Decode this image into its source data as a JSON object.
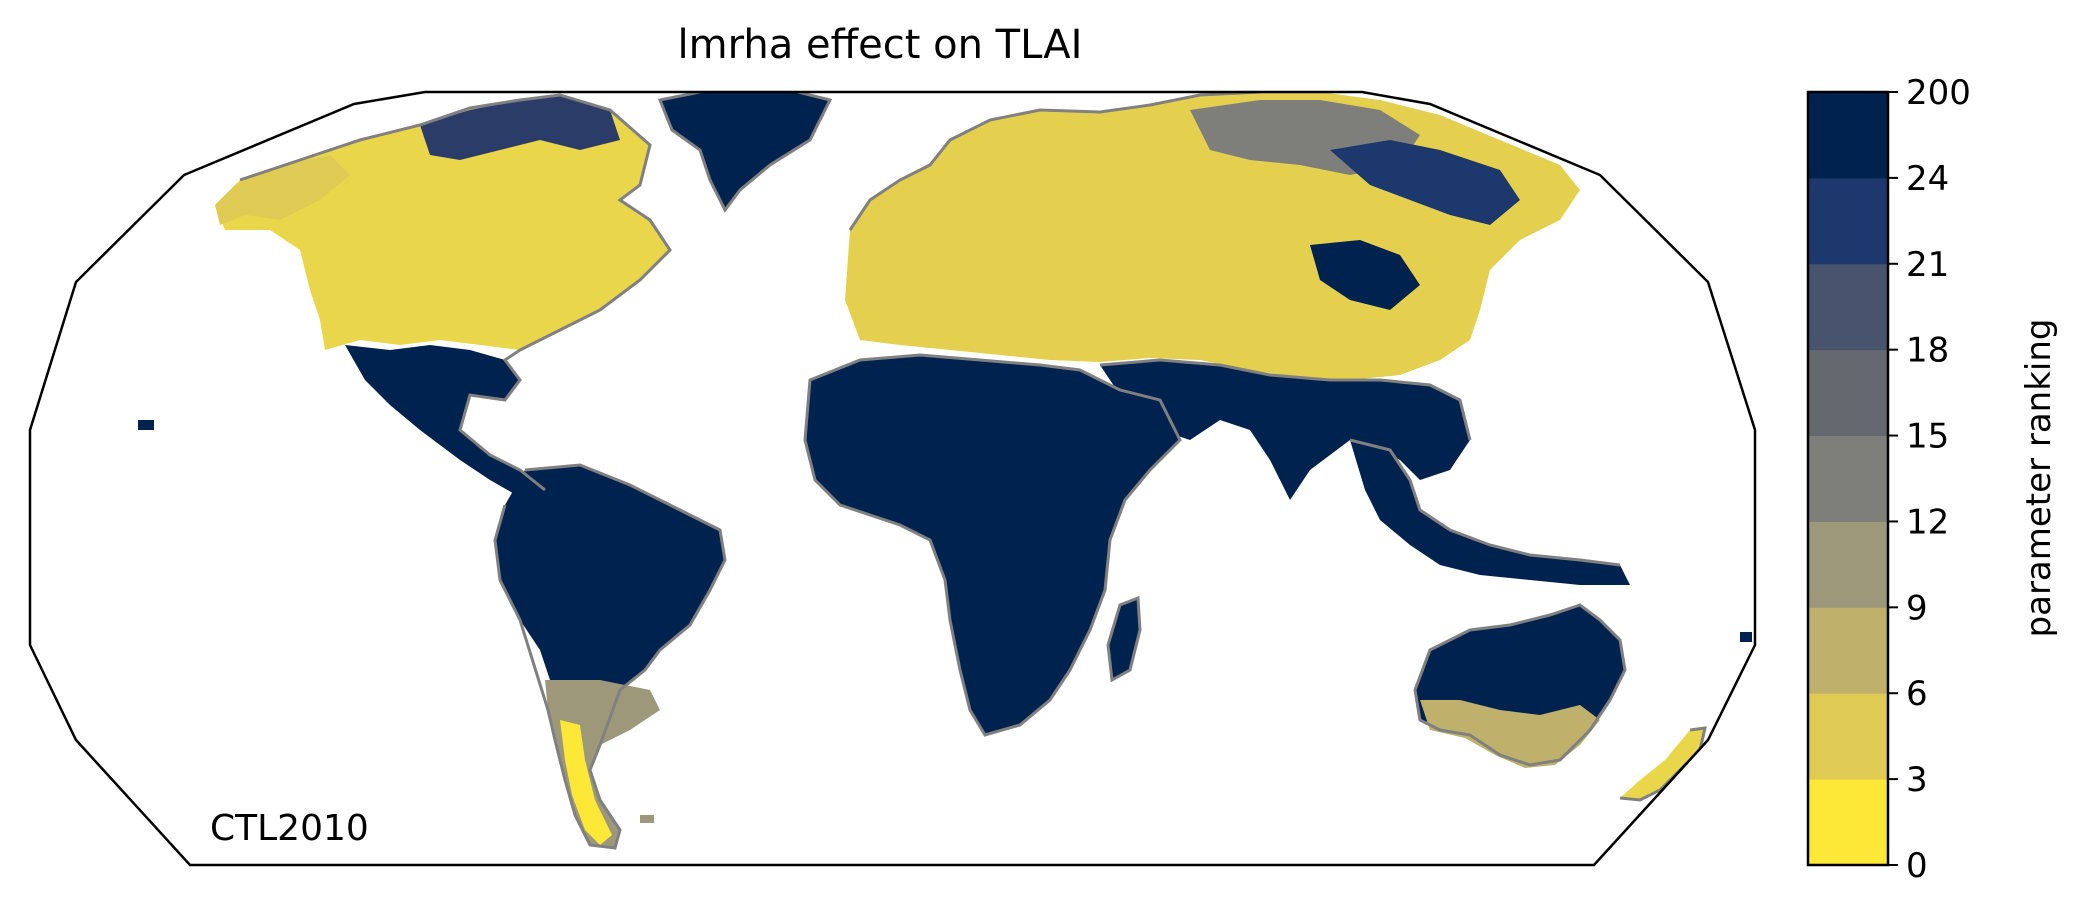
{
  "title": "lmrha effect on TLAI",
  "corner_label": "CTL2010",
  "colorbar": {
    "label": "parameter ranking",
    "ticks": [
      "0",
      "3",
      "6",
      "9",
      "12",
      "15",
      "18",
      "21",
      "24",
      "200"
    ],
    "colors": [
      "#fde737",
      "#dfcb54",
      "#bfb16b",
      "#9d987a",
      "#7e7f7b",
      "#65686f",
      "#48536e",
      "#1c386d",
      "#00224e"
    ]
  },
  "map": {
    "projection": "robinson",
    "colors": {
      "high": "#00224e",
      "low": "#fde737",
      "mid": "#dccb55",
      "gray": "#8a8a80",
      "coast": "#808080"
    }
  }
}
